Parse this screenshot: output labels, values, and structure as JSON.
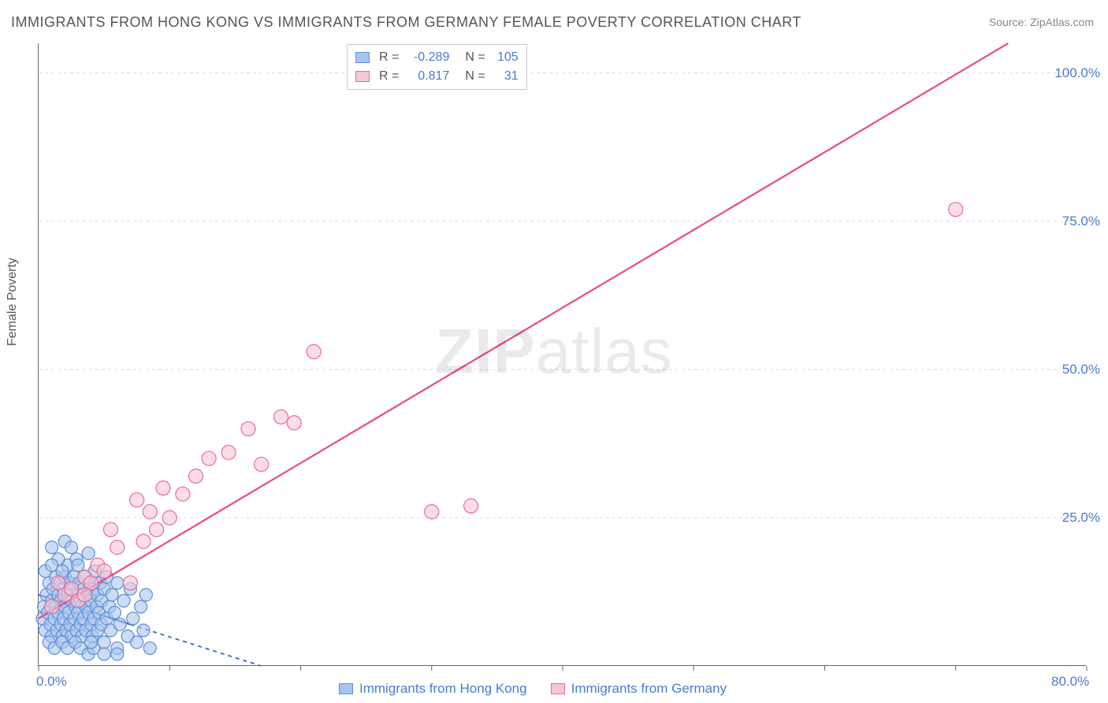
{
  "title": "IMMIGRANTS FROM HONG KONG VS IMMIGRANTS FROM GERMANY FEMALE POVERTY CORRELATION CHART",
  "source": "Source: ZipAtlas.com",
  "watermark": "ZIPatlas",
  "ylabel": "Female Poverty",
  "chart": {
    "type": "scatter",
    "xlim": [
      0,
      80
    ],
    "ylim": [
      0,
      105
    ],
    "x_ticks": [
      0,
      10,
      20,
      30,
      40,
      50,
      60,
      70,
      80
    ],
    "x_tick_labels": {
      "0": "0.0%",
      "80": "80.0%"
    },
    "y_ticks": [
      25,
      50,
      75,
      100
    ],
    "y_tick_labels": [
      "25.0%",
      "50.0%",
      "75.0%",
      "100.0%"
    ],
    "grid_color": "#dddddd",
    "background_color": "#ffffff",
    "axis_color": "#666666",
    "series": [
      {
        "name": "Immigrants from Hong Kong",
        "marker_fill": "#a8c5ed",
        "marker_stroke": "#5b8dd6",
        "marker_radius": 8,
        "line_color": "#3668c9",
        "line_style": "solid_then_dashed",
        "R": "-0.289",
        "N": "105",
        "regression": {
          "x1": 0,
          "y1": 12,
          "x2_solid": 7,
          "y2_solid": 7,
          "x2": 17,
          "y2": 0
        },
        "points": [
          [
            0.3,
            8
          ],
          [
            0.4,
            10
          ],
          [
            0.5,
            6
          ],
          [
            0.6,
            12
          ],
          [
            0.7,
            9
          ],
          [
            0.8,
            14
          ],
          [
            0.9,
            7
          ],
          [
            1.0,
            11
          ],
          [
            1.0,
            5
          ],
          [
            1.1,
            13
          ],
          [
            1.2,
            8
          ],
          [
            1.3,
            15
          ],
          [
            1.3,
            10
          ],
          [
            1.4,
            6
          ],
          [
            1.5,
            12
          ],
          [
            1.5,
            9
          ],
          [
            1.6,
            14
          ],
          [
            1.7,
            7
          ],
          [
            1.7,
            11
          ],
          [
            1.8,
            5
          ],
          [
            1.9,
            13
          ],
          [
            1.9,
            8
          ],
          [
            2.0,
            15
          ],
          [
            2.0,
            10
          ],
          [
            2.1,
            6
          ],
          [
            2.2,
            12
          ],
          [
            2.2,
            17
          ],
          [
            2.3,
            9
          ],
          [
            2.4,
            14
          ],
          [
            2.4,
            7
          ],
          [
            2.5,
            11
          ],
          [
            2.5,
            5
          ],
          [
            2.6,
            13
          ],
          [
            2.7,
            8
          ],
          [
            2.7,
            15
          ],
          [
            2.8,
            10
          ],
          [
            2.9,
            6
          ],
          [
            2.9,
            18
          ],
          [
            3.0,
            12
          ],
          [
            3.0,
            9
          ],
          [
            3.1,
            14
          ],
          [
            3.2,
            7
          ],
          [
            3.2,
            11
          ],
          [
            3.3,
            5
          ],
          [
            3.4,
            13
          ],
          [
            3.4,
            8
          ],
          [
            3.5,
            15
          ],
          [
            3.6,
            10
          ],
          [
            3.6,
            6
          ],
          [
            3.7,
            12
          ],
          [
            3.8,
            9
          ],
          [
            3.8,
            19
          ],
          [
            3.9,
            14
          ],
          [
            4.0,
            7
          ],
          [
            4.0,
            11
          ],
          [
            4.1,
            5
          ],
          [
            4.2,
            13
          ],
          [
            4.2,
            8
          ],
          [
            4.3,
            16
          ],
          [
            4.4,
            10
          ],
          [
            4.5,
            6
          ],
          [
            4.5,
            12
          ],
          [
            4.6,
            9
          ],
          [
            4.7,
            14
          ],
          [
            4.8,
            7
          ],
          [
            4.8,
            11
          ],
          [
            5.0,
            13
          ],
          [
            5.0,
            4
          ],
          [
            5.2,
            8
          ],
          [
            5.2,
            15
          ],
          [
            5.4,
            10
          ],
          [
            5.5,
            6
          ],
          [
            5.6,
            12
          ],
          [
            5.8,
            9
          ],
          [
            6.0,
            14
          ],
          [
            6.0,
            3
          ],
          [
            6.2,
            7
          ],
          [
            6.5,
            11
          ],
          [
            6.8,
            5
          ],
          [
            7.0,
            13
          ],
          [
            7.2,
            8
          ],
          [
            7.5,
            4
          ],
          [
            7.8,
            10
          ],
          [
            8.0,
            6
          ],
          [
            8.2,
            12
          ],
          [
            8.5,
            3
          ],
          [
            1.0,
            20
          ],
          [
            1.5,
            18
          ],
          [
            2.0,
            21
          ],
          [
            0.8,
            4
          ],
          [
            1.2,
            3
          ],
          [
            1.8,
            4
          ],
          [
            2.2,
            3
          ],
          [
            2.8,
            4
          ],
          [
            3.2,
            3
          ],
          [
            3.8,
            2
          ],
          [
            4.2,
            3
          ],
          [
            5.0,
            2
          ],
          [
            6.0,
            2
          ],
          [
            0.5,
            16
          ],
          [
            1.0,
            17
          ],
          [
            1.8,
            16
          ],
          [
            2.5,
            20
          ],
          [
            3.0,
            17
          ],
          [
            4.0,
            4
          ]
        ]
      },
      {
        "name": "Immigrants from Germany",
        "marker_fill": "#f7c6d5",
        "marker_stroke": "#e86b9a",
        "marker_radius": 9,
        "line_color": "#e84a8a",
        "line_style": "solid",
        "R": "0.817",
        "N": "31",
        "regression": {
          "x1": 0,
          "y1": 8,
          "x2": 74,
          "y2": 105
        },
        "points": [
          [
            1.0,
            10
          ],
          [
            1.5,
            14
          ],
          [
            2.0,
            12
          ],
          [
            2.5,
            13
          ],
          [
            3.0,
            11
          ],
          [
            3.5,
            15
          ],
          [
            4.0,
            14
          ],
          [
            4.5,
            17
          ],
          [
            5.0,
            16
          ],
          [
            5.5,
            23
          ],
          [
            6.0,
            20
          ],
          [
            7.0,
            14
          ],
          [
            7.5,
            28
          ],
          [
            8.0,
            21
          ],
          [
            8.5,
            26
          ],
          [
            9.0,
            23
          ],
          [
            9.5,
            30
          ],
          [
            10.0,
            25
          ],
          [
            11.0,
            29
          ],
          [
            12.0,
            32
          ],
          [
            13.0,
            35
          ],
          [
            14.5,
            36
          ],
          [
            16.0,
            40
          ],
          [
            17.0,
            34
          ],
          [
            18.5,
            42
          ],
          [
            19.5,
            41
          ],
          [
            21.0,
            53
          ],
          [
            30.0,
            26
          ],
          [
            33.0,
            27
          ],
          [
            70.0,
            77
          ],
          [
            3.5,
            12
          ]
        ]
      }
    ]
  },
  "legend_bottom": [
    {
      "label": "Immigrants from Hong Kong",
      "fill": "#a8c5ed",
      "stroke": "#5b8dd6"
    },
    {
      "label": "Immigrants from Germany",
      "fill": "#f7c6d5",
      "stroke": "#e86b9a"
    }
  ]
}
